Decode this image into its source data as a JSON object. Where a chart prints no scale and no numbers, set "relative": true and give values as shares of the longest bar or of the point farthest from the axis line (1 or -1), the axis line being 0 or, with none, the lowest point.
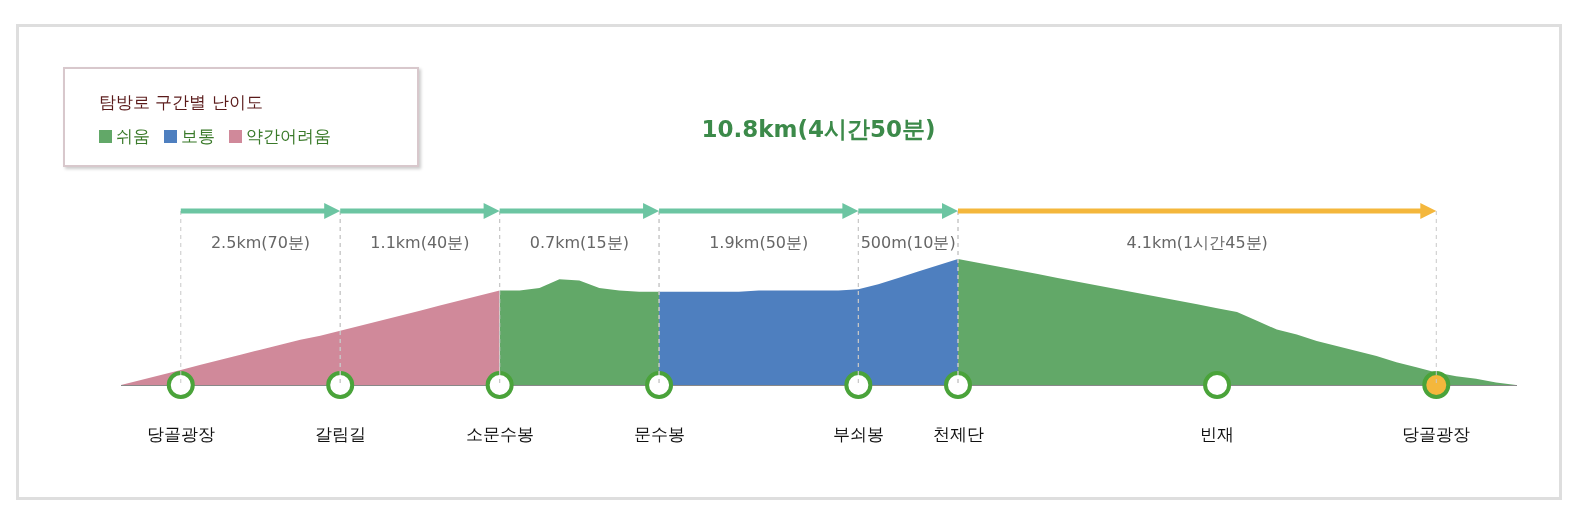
{
  "chart_data": {
    "type": "area",
    "title": "10.8km(4시간50분)",
    "legend_title": "탐방로 구간별 난이도",
    "legend": "top left",
    "relative": true,
    "grid": "x",
    "categories": [
      null,
      null,
      null,
      "당골광장",
      null,
      null,
      null,
      null,
      null,
      null,
      null,
      "갈림길",
      null,
      null,
      null,
      null,
      null,
      null,
      null,
      "소문수봉",
      null,
      null,
      null,
      null,
      null,
      null,
      null,
      "문수봉",
      null,
      null,
      null,
      null,
      null,
      null,
      null,
      null,
      null,
      "부쇠봉",
      null,
      null,
      null,
      null,
      "천제단",
      null,
      null,
      null,
      null,
      null,
      null,
      null,
      null,
      null,
      null,
      null,
      null,
      "빈재",
      null,
      null,
      null,
      null,
      null,
      null,
      null,
      null,
      null,
      null,
      "당골광장",
      null,
      null,
      null,
      null
    ],
    "series": [
      {
        "name": "쉬움",
        "color": "#62a868",
        "values": [
          null,
          null,
          null,
          null,
          null,
          null,
          null,
          null,
          null,
          null,
          null,
          null,
          null,
          null,
          null,
          null,
          null,
          null,
          null,
          0.75,
          0.75,
          0.77,
          0.84,
          0.83,
          0.77,
          0.75,
          0.74,
          0.74,
          null,
          null,
          null,
          null,
          null,
          null,
          null,
          null,
          null,
          null,
          null,
          null,
          null,
          null,
          1.0,
          0.97,
          0.94,
          0.91,
          0.88,
          0.85,
          0.82,
          0.79,
          0.76,
          0.73,
          0.7,
          0.67,
          0.64,
          0.61,
          0.58,
          0.51,
          0.44,
          0.4,
          0.35,
          0.31,
          0.27,
          0.23,
          0.18,
          0.14,
          0.1,
          0.07,
          0.05,
          0.02,
          0
        ]
      },
      {
        "name": "보통",
        "color": "#4e7fbf",
        "values": [
          null,
          null,
          null,
          null,
          null,
          null,
          null,
          null,
          null,
          null,
          null,
          null,
          null,
          null,
          null,
          null,
          null,
          null,
          null,
          null,
          null,
          null,
          null,
          null,
          null,
          null,
          null,
          0.74,
          0.74,
          0.74,
          0.74,
          0.74,
          0.75,
          0.75,
          0.75,
          0.75,
          0.75,
          0.76,
          0.8,
          0.85,
          0.9,
          0.95,
          1.0,
          null,
          null,
          null,
          null,
          null,
          null,
          null,
          null,
          null,
          null,
          null,
          null,
          null,
          null,
          null,
          null,
          null,
          null,
          null,
          null,
          null,
          null,
          null,
          null,
          null,
          null,
          null,
          null
        ]
      },
      {
        "name": "약간어려움",
        "color": "#d0899a",
        "values": [
          0,
          0.04,
          0.08,
          0.12,
          0.16,
          0.2,
          0.24,
          0.28,
          0.32,
          0.36,
          0.39,
          0.43,
          0.47,
          0.51,
          0.55,
          0.59,
          0.63,
          0.67,
          0.71,
          0.75,
          null,
          null,
          null,
          null,
          null,
          null,
          null,
          null,
          null,
          null,
          null,
          null,
          null,
          null,
          null,
          null,
          null,
          null,
          null,
          null,
          null,
          null,
          null,
          null,
          null,
          null,
          null,
          null,
          null,
          null,
          null,
          null,
          null,
          null,
          null,
          null,
          null,
          null,
          null,
          null,
          null,
          null,
          null,
          null,
          null,
          null,
          null,
          null,
          null,
          null,
          null
        ]
      },
      {
        "type": "scatter",
        "marker": "circle",
        "color": "#4aa33a",
        "values": [
          null,
          null,
          null,
          0,
          null,
          null,
          null,
          null,
          null,
          null,
          null,
          0,
          null,
          null,
          null,
          null,
          null,
          null,
          null,
          0,
          null,
          null,
          null,
          null,
          null,
          null,
          null,
          0,
          null,
          null,
          null,
          null,
          null,
          null,
          null,
          null,
          null,
          0,
          null,
          null,
          null,
          null,
          0,
          null,
          null,
          null,
          null,
          null,
          null,
          null,
          null,
          null,
          null,
          null,
          null,
          0,
          null,
          null,
          null,
          null,
          null,
          null,
          null,
          null,
          null,
          null,
          0,
          null,
          null,
          null,
          null
        ],
        "colors": [
          null,
          null,
          null,
          "#ffffff",
          null,
          null,
          null,
          null,
          null,
          null,
          null,
          "#ffffff",
          null,
          null,
          null,
          null,
          null,
          null,
          null,
          "#ffffff",
          null,
          null,
          null,
          null,
          null,
          null,
          null,
          "#ffffff",
          null,
          null,
          null,
          null,
          null,
          null,
          null,
          null,
          null,
          "#ffffff",
          null,
          null,
          null,
          null,
          "#ffffff",
          null,
          null,
          null,
          null,
          null,
          null,
          null,
          null,
          null,
          null,
          null,
          null,
          "#ffffff",
          null,
          null,
          null,
          null,
          null,
          null,
          null,
          null,
          null,
          null,
          "#f4b73c",
          null,
          null,
          null,
          null
        ]
      }
    ],
    "annotations": [
      "2.5km(70분)",
      "1.1km(40분)",
      "0.7km(15분)",
      "1.9km(50분)",
      "500m(10분)",
      "4.1km(1시간45분)"
    ]
  }
}
